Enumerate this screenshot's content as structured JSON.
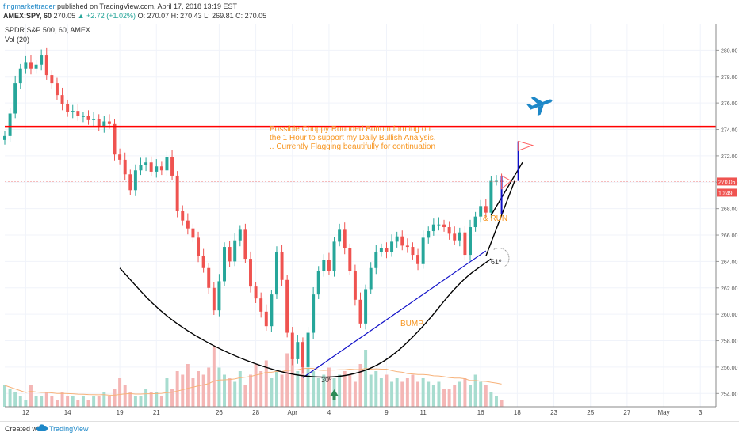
{
  "header": {
    "author": "fingmarkettrader",
    "published": "published on TradingView.com, April 17, 2018 13:19 EST",
    "symbol": "AMEX:SPY, 60",
    "last": "270.05",
    "change": "▲ +2.72 (+1.02%)",
    "ohlc": "O: 270.07  H: 270.43  L: 269.81  C: 270.05"
  },
  "footer": {
    "created": "Created with",
    "brand": "TradingView"
  },
  "colors": {
    "up": "#26a69a",
    "down": "#ef5350",
    "resistance": "#ff0000",
    "trendline": "#1010c8",
    "annotation": "#f7941d",
    "plane": "#1e88c8"
  },
  "chart_data": {
    "type": "candlestick",
    "title": "SPDR S&P 500, 60, AMEX",
    "indicator": "Vol (20)",
    "ylim": [
      253,
      282
    ],
    "y_ticks": [
      "254.00",
      "256.00",
      "258.00",
      "260.00",
      "262.00",
      "264.00",
      "266.00",
      "268.00",
      "270.00",
      "272.00",
      "274.00",
      "276.00",
      "278.00",
      "280.00"
    ],
    "x_ticks": [
      {
        "label": "12",
        "i": 4
      },
      {
        "label": "14",
        "i": 12
      },
      {
        "label": "19",
        "i": 22
      },
      {
        "label": "21",
        "i": 29
      },
      {
        "label": "26",
        "i": 41
      },
      {
        "label": "28",
        "i": 48
      },
      {
        "label": "Apr",
        "i": 55
      },
      {
        "label": "4",
        "i": 62
      },
      {
        "label": "9",
        "i": 73
      },
      {
        "label": "11",
        "i": 80
      },
      {
        "label": "16",
        "i": 91
      },
      {
        "label": "18",
        "i": 98
      },
      {
        "label": "23",
        "i": 105
      },
      {
        "label": "25",
        "i": 112
      },
      {
        "label": "27",
        "i": 119
      },
      {
        "label": "May",
        "i": 126
      },
      {
        "label": "3",
        "i": 133
      }
    ],
    "x_index_range": [
      0,
      136
    ],
    "price_marks": [
      {
        "name": "current-price",
        "value": 270.05,
        "text": "270.05"
      },
      {
        "name": "countdown",
        "value": 269.45,
        "text": "10:49"
      }
    ],
    "closes": [
      273.5,
      275.2,
      277.5,
      278.6,
      279.1,
      278.6,
      278.9,
      279.6,
      278.1,
      277.5,
      276.6,
      275.9,
      275.3,
      275.4,
      275.0,
      275.0,
      274.7,
      274.8,
      274.2,
      274.6,
      274.4,
      272.1,
      271.7,
      270.6,
      269.4,
      270.9,
      271.3,
      271.5,
      270.8,
      271.2,
      270.9,
      271.9,
      270.5,
      267.8,
      267.1,
      266.5,
      265.8,
      264.4,
      263.5,
      262.0,
      260.3,
      262.5,
      265.1,
      264.0,
      265.6,
      266.4,
      264.2,
      262.1,
      261.2,
      260.2,
      259.1,
      261.5,
      264.7,
      262.6,
      258.6,
      256.6,
      257.9,
      256.0,
      258.6,
      261.5,
      263.3,
      264.1,
      263.3,
      265.5,
      266.4,
      265.0,
      263.3,
      261.1,
      259.3,
      261.9,
      263.5,
      264.7,
      265.0,
      264.7,
      265.5,
      265.9,
      265.2,
      265.1,
      264.5,
      263.8,
      265.8,
      266.3,
      266.8,
      266.8,
      266.6,
      266.1,
      265.6,
      266.2,
      264.5,
      266.6,
      267.4,
      268.2,
      267.7,
      270.1,
      270.1,
      270.05
    ],
    "volume": [
      6,
      5,
      4,
      3,
      2,
      6,
      3,
      3,
      4,
      3,
      2,
      4,
      3,
      3,
      2,
      3,
      2,
      3,
      3,
      4,
      3,
      5,
      8,
      6,
      4,
      3,
      3,
      5,
      4,
      4,
      3,
      8,
      5,
      10,
      9,
      12,
      8,
      10,
      9,
      11,
      17,
      11,
      9,
      8,
      7,
      10,
      6,
      9,
      12,
      10,
      13,
      8,
      10,
      9,
      15,
      14,
      10,
      16,
      11,
      10,
      8,
      9,
      11,
      8,
      9,
      10,
      9,
      7,
      12,
      16,
      9,
      10,
      8,
      9,
      7,
      8,
      7,
      8,
      9,
      7,
      8,
      7,
      6,
      7,
      5,
      5,
      6,
      7,
      8,
      6,
      9,
      7,
      6,
      4,
      3,
      2
    ],
    "annotations": [
      {
        "name": "analysis-text",
        "lines": [
          "Possible Choppy Rounded Bottom forming on",
          "the 1 Hour to support my Daily Bullish Analysis.",
          ".. Currently Flagging beautifully for continuation"
        ]
      },
      {
        "name": "bump-label",
        "text": "BUMP"
      },
      {
        "name": "run-label",
        "text": "& RUN"
      },
      {
        "name": "angle-61",
        "text": "61º"
      },
      {
        "name": "angle-30",
        "text": "30º"
      }
    ],
    "resistance_level": 274.2,
    "trendline": {
      "from": [
        57,
        255.2
      ],
      "to": [
        92,
        264.8
      ]
    },
    "rounded_bottom": [
      [
        22,
        263.5
      ],
      [
        30,
        260.0
      ],
      [
        40,
        257.5
      ],
      [
        50,
        255.9
      ],
      [
        58,
        255.2
      ],
      [
        66,
        255.3
      ],
      [
        73,
        256.4
      ],
      [
        80,
        259.0
      ],
      [
        87,
        262.5
      ],
      [
        93,
        264.2
      ]
    ],
    "run_line": {
      "from": [
        93,
        267.5
      ],
      "to": [
        99,
        271.5
      ]
    },
    "flag_pole": {
      "from": [
        95,
        267.6
      ],
      "to": [
        95,
        270.5
      ]
    }
  }
}
